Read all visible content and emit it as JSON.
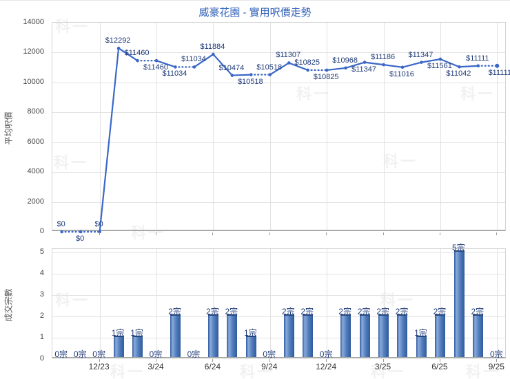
{
  "title": "威豪花園 - 實用呎價走勢",
  "watermark": "科一",
  "colors": {
    "title": "#3060b8",
    "line": "#3a67c8",
    "point": "#3a67c8",
    "data_label": "#1e3a78",
    "bar_dark": "#2f5a9c",
    "bar_light": "#8aabdc",
    "bar_mid": "#5580bf",
    "grid": "#e2e2e2",
    "axis": "#a9a9a9",
    "tick_text": "#444444"
  },
  "chart_data": [
    {
      "type": "line",
      "title": "威豪花園 - 實用呎價走勢",
      "xlabel": "",
      "ylabel": "平均呎價",
      "ylim": [
        0,
        14000
      ],
      "yticks": [
        0,
        2000,
        4000,
        6000,
        8000,
        10000,
        12000,
        14000
      ],
      "grid": true,
      "legend": "none",
      "categories": [
        "10/23",
        "11/23",
        "12/23",
        "1/24",
        "2/24",
        "3/24",
        "4/24",
        "5/24",
        "6/24",
        "7/24",
        "8/24",
        "9/24",
        "10/24",
        "11/24",
        "12/24",
        "1/25",
        "2/25",
        "3/25",
        "4/25",
        "5/25",
        "6/25",
        "7/25",
        "8/25",
        "9/25"
      ],
      "xticks_shown": [
        "12/23",
        "3/24",
        "6/24",
        "9/24",
        "12/24",
        "3/25",
        "6/25",
        "9/25"
      ],
      "series": [
        {
          "name": "平均呎價",
          "values": [
            0,
            0,
            0,
            12292,
            11460,
            11460,
            11034,
            11034,
            11884,
            10474,
            10518,
            10518,
            11307,
            10825,
            10825,
            10968,
            11347,
            11186,
            11016,
            11347,
            11561,
            11042,
            11111,
            11111
          ],
          "point_labels": [
            "$0",
            "$0",
            "$0",
            "$12292",
            "$11460",
            "$11460",
            "$11034",
            "$11034",
            "$11884",
            "$10474",
            "$10518",
            "$10518",
            "$11307",
            "$10825",
            "$10825",
            "$10968",
            "$11347",
            "$11186",
            "$11016",
            "$11347",
            "$11561",
            "$11042",
            "$11111",
            "$11111"
          ],
          "label_pos": [
            "above",
            "below",
            "above",
            "above",
            "above",
            "below",
            "below",
            "above",
            "above",
            "above",
            "below",
            "above",
            "above",
            "above",
            "below",
            "above",
            "below",
            "above",
            "below",
            "above",
            "below",
            "below",
            "above",
            "below"
          ],
          "dotted_segments": [
            true,
            true,
            false,
            false,
            true,
            false,
            true,
            false,
            false,
            false,
            true,
            false,
            false,
            true,
            false,
            false,
            false,
            false,
            false,
            false,
            false,
            false,
            true
          ]
        }
      ]
    },
    {
      "type": "bar",
      "title": "",
      "xlabel": "",
      "ylabel": "成交宗數",
      "ylim": [
        0,
        5
      ],
      "yticks": [
        0,
        1,
        2,
        3,
        4,
        5
      ],
      "grid": true,
      "legend": "none",
      "categories": [
        "10/23",
        "11/23",
        "12/23",
        "1/24",
        "2/24",
        "3/24",
        "4/24",
        "5/24",
        "6/24",
        "7/24",
        "8/24",
        "9/24",
        "10/24",
        "11/24",
        "12/24",
        "1/25",
        "2/25",
        "3/25",
        "4/25",
        "5/25",
        "6/25",
        "7/25",
        "8/25",
        "9/25"
      ],
      "xticks_shown": [
        "12/23",
        "3/24",
        "6/24",
        "9/24",
        "12/24",
        "3/25",
        "6/25",
        "9/25"
      ],
      "values": [
        0,
        0,
        0,
        1,
        1,
        0,
        2,
        0,
        2,
        2,
        1,
        0,
        2,
        2,
        0,
        2,
        2,
        2,
        2,
        1,
        2,
        5,
        2,
        0
      ],
      "bar_labels": [
        "0宗",
        "0宗",
        "0宗",
        "1宗",
        "1宗",
        "0宗",
        "2宗",
        "0宗",
        "2宗",
        "2宗",
        "1宗",
        "0宗",
        "2宗",
        "2宗",
        "0宗",
        "2宗",
        "2宗",
        "2宗",
        "2宗",
        "1宗",
        "2宗",
        "5宗",
        "2宗",
        "0宗"
      ]
    }
  ]
}
